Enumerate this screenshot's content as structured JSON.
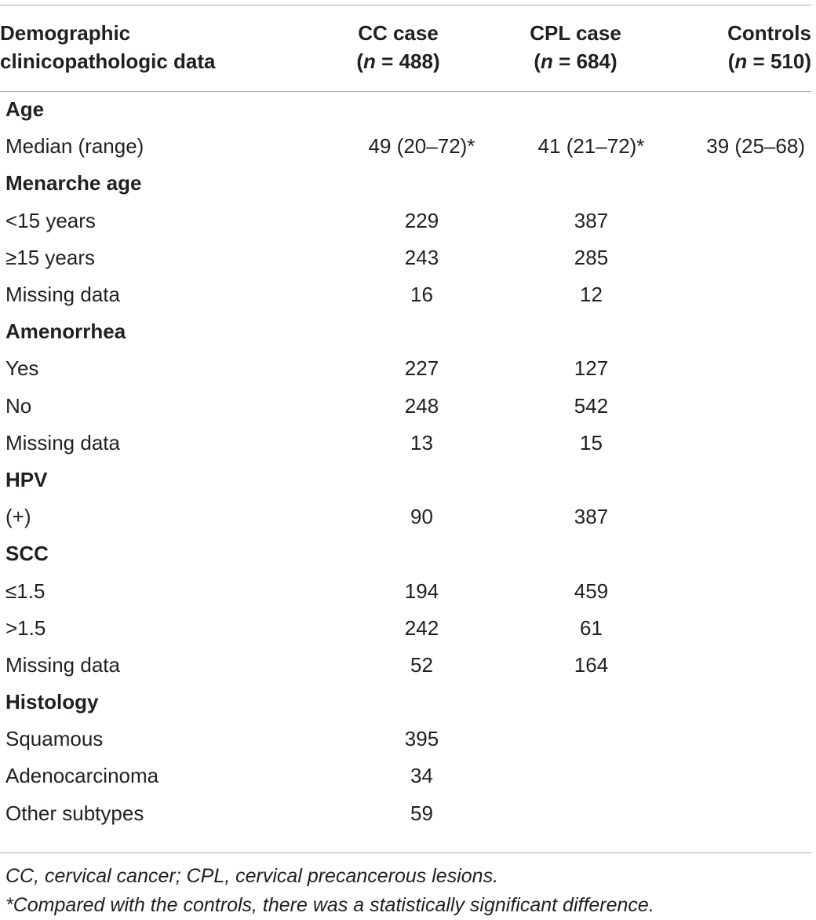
{
  "table": {
    "header": {
      "col0": [
        "Demographic",
        "clinicopathologic data"
      ],
      "col1": {
        "name": "CC case",
        "n_label": "n",
        "n_value": " = 488"
      },
      "col2": {
        "name": "CPL case",
        "n_label": "n",
        "n_value": " = 684"
      },
      "col3": {
        "name": "Controls",
        "n_label": "n",
        "n_value": " = 510"
      }
    },
    "rows": [
      {
        "type": "section",
        "label": "Age"
      },
      {
        "type": "data",
        "label": "Median (range)",
        "cc": "49 (20–72)*",
        "cpl": "41 (21–72)*",
        "controls": "39 (25–68)"
      },
      {
        "type": "section",
        "label": "Menarche age"
      },
      {
        "type": "data",
        "label": "<15 years",
        "cc": "229",
        "cpl": "387",
        "controls": ""
      },
      {
        "type": "data",
        "label": "≥15 years",
        "cc": "243",
        "cpl": "285",
        "controls": ""
      },
      {
        "type": "data",
        "label": "Missing data",
        "cc": "16",
        "cpl": "12",
        "controls": ""
      },
      {
        "type": "section",
        "label": "Amenorrhea"
      },
      {
        "type": "data",
        "label": "Yes",
        "cc": "227",
        "cpl": "127",
        "controls": ""
      },
      {
        "type": "data",
        "label": "No",
        "cc": "248",
        "cpl": "542",
        "controls": ""
      },
      {
        "type": "data",
        "label": "Missing data",
        "cc": "13",
        "cpl": "15",
        "controls": ""
      },
      {
        "type": "section",
        "label": "HPV"
      },
      {
        "type": "data",
        "label": "(+)",
        "cc": "90",
        "cpl": "387",
        "controls": ""
      },
      {
        "type": "section",
        "label": "SCC"
      },
      {
        "type": "data",
        "label": "≤1.5",
        "cc": "194",
        "cpl": "459",
        "controls": ""
      },
      {
        "type": "data",
        "label": ">1.5",
        "cc": "242",
        "cpl": "61",
        "controls": ""
      },
      {
        "type": "data",
        "label": "Missing data",
        "cc": "52",
        "cpl": "164",
        "controls": ""
      },
      {
        "type": "section",
        "label": "Histology"
      },
      {
        "type": "data",
        "label": "Squamous",
        "cc": "395",
        "cpl": "",
        "controls": ""
      },
      {
        "type": "data",
        "label": "Adenocarcinoma",
        "cc": "34",
        "cpl": "",
        "controls": ""
      },
      {
        "type": "data",
        "label": "Other subtypes",
        "cc": "59",
        "cpl": "",
        "controls": ""
      }
    ]
  },
  "footnotes": [
    "CC, cervical cancer; CPL, cervical precancerous lesions.",
    "*Compared with the controls, there was a statistically significant difference."
  ]
}
